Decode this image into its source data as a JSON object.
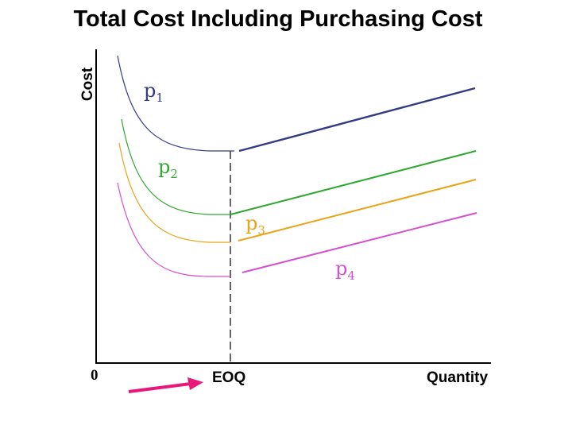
{
  "title": "Total Cost Including Purchasing Cost",
  "axes": {
    "y_label": "Cost",
    "x_label": "Quantity",
    "origin_label": "0",
    "eoq_label": "EOQ"
  },
  "curves": [
    {
      "label": "p",
      "sub": "1",
      "color": "#333a84"
    },
    {
      "label": "p",
      "sub": "2",
      "color": "#2ea82e"
    },
    {
      "label": "p",
      "sub": "3",
      "color": "#e8a317"
    },
    {
      "label": "p",
      "sub": "4",
      "color": "#d64fd0"
    }
  ],
  "arrow_color": "#e8187a"
}
